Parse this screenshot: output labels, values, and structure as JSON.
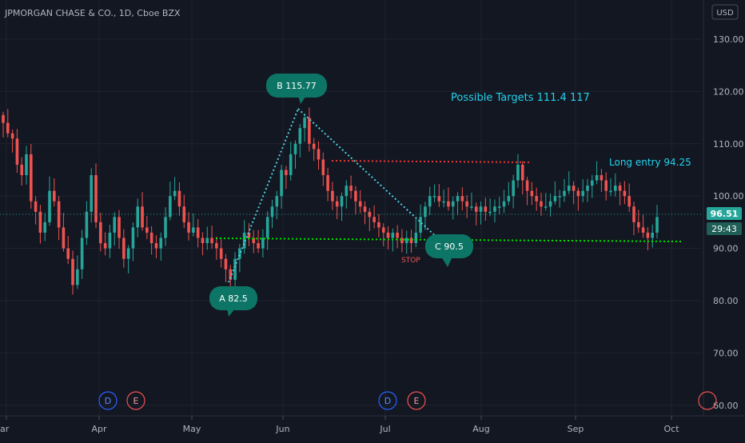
{
  "header": {
    "symbol_title": "JPMORGAN CHASE & CO., 1D, Cboe BZX",
    "currency": "USD"
  },
  "price_axis": {
    "ticks": [
      "130.00",
      "120.00",
      "110.00",
      "100.00",
      "90.00",
      "80.00",
      "70.00",
      "60.00"
    ]
  },
  "time_axis": {
    "ticks": [
      "ar",
      "Apr",
      "May",
      "Jun",
      "Jul",
      "Aug",
      "Sep",
      "Oct"
    ]
  },
  "price_tags": {
    "last": "96.51",
    "countdown": "29:43"
  },
  "annotations": {
    "a_label": "A 82.5",
    "b_label": "B  115.77",
    "c_label": "C 90.5",
    "targets": "Possible Targets  111.4   117",
    "long_entry": "Long entry  94.25",
    "stop": "STOP"
  },
  "events": {
    "dividend_letter": "D",
    "earnings_letter": "E"
  },
  "colors": {
    "background": "#131722",
    "up": "#26a69a",
    "down": "#ef5350",
    "callout": "#0d7566",
    "annotation_text": "#22d3ee",
    "support_line": "#00e000",
    "resistance_line": "#e53935",
    "trend_line": "#4dd0e1",
    "price_tag": "#26a69a"
  },
  "chart_data": {
    "type": "candlestick",
    "title": "JPMORGAN CHASE & CO., 1D, Cboe BZX",
    "ylim": [
      58,
      137
    ],
    "y_ticks": [
      130,
      120,
      110,
      100,
      90,
      80,
      70,
      60
    ],
    "x_ticks": [
      "ar",
      "Apr",
      "May",
      "Jun",
      "Jul",
      "Aug",
      "Sep",
      "Oct"
    ],
    "last_price": 96.51,
    "grid": true,
    "lines": [
      {
        "name": "A-B trend",
        "points": [
          [
            82.5
          ],
          [
            115.77
          ]
        ]
      },
      {
        "name": "B-C trend",
        "points": [
          [
            115.77
          ],
          [
            90.5
          ]
        ]
      },
      {
        "name": "support",
        "value": 91.2
      },
      {
        "name": "resistance",
        "value": 106.2
      }
    ],
    "closes": [
      114,
      112,
      111,
      106,
      104,
      108,
      99,
      97,
      93,
      95,
      101,
      99,
      94,
      90,
      88,
      83,
      86,
      92,
      97,
      104,
      95,
      91,
      90,
      93,
      96,
      92,
      88,
      90,
      94,
      98,
      94,
      93,
      91,
      90,
      92,
      96,
      100,
      101,
      98,
      95,
      93,
      94,
      92,
      91,
      92,
      91,
      90,
      88,
      86,
      84,
      88,
      90,
      93,
      92,
      91,
      90,
      92,
      96,
      98,
      100,
      105,
      104,
      108,
      110,
      113,
      115,
      110,
      109,
      107,
      104,
      101,
      99,
      98,
      100,
      102,
      101,
      99,
      98,
      97,
      96,
      95,
      94,
      93,
      92,
      93,
      92,
      91,
      92,
      91,
      93,
      96,
      98,
      100,
      100,
      99,
      99,
      98,
      99,
      100,
      99,
      98,
      98,
      97,
      98,
      97,
      97,
      98,
      98,
      99,
      100,
      103,
      106,
      103,
      101,
      100,
      99,
      98,
      98,
      99,
      100,
      100,
      101,
      102,
      101,
      100,
      101,
      102,
      103,
      104,
      103,
      101,
      101,
      102,
      101,
      100,
      98,
      95,
      94,
      93,
      92,
      93,
      96
    ]
  }
}
